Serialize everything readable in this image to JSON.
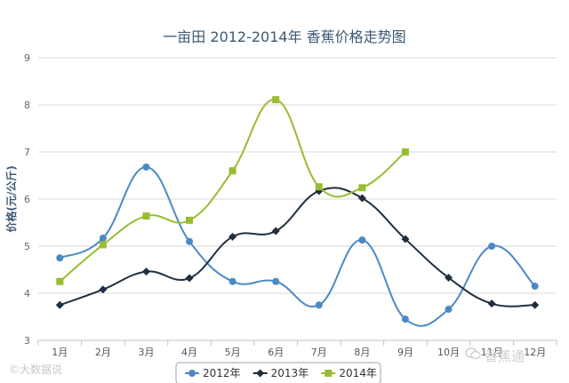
{
  "chart_data": {
    "type": "line",
    "title": "一亩田 2012-2014年 香蕉价格走势图",
    "ylabel": "价格(元/公斤)",
    "xlabel": "",
    "categories": [
      "1月",
      "2月",
      "3月",
      "4月",
      "5月",
      "6月",
      "7月",
      "8月",
      "9月",
      "10月",
      "11月",
      "12月"
    ],
    "ylim": [
      3,
      9
    ],
    "yticks": [
      3,
      4,
      5,
      6,
      7,
      8,
      9
    ],
    "grid": true,
    "legend_position": "bottom-center",
    "series": [
      {
        "name": "2012年",
        "color": "#4a89c6",
        "marker": "circle",
        "values": [
          4.75,
          5.17,
          6.68,
          5.1,
          4.25,
          4.25,
          3.75,
          5.13,
          3.45,
          3.66,
          5.0,
          4.15
        ]
      },
      {
        "name": "2013年",
        "color": "#1f2f3f",
        "marker": "diamond",
        "values": [
          3.75,
          4.08,
          4.46,
          4.32,
          5.2,
          5.32,
          6.17,
          6.02,
          5.15,
          4.33,
          3.78,
          3.75
        ]
      },
      {
        "name": "2014年",
        "color": "#98bd32",
        "marker": "square",
        "values": [
          4.25,
          5.03,
          5.64,
          5.55,
          6.6,
          8.11,
          6.26,
          6.24,
          7.0,
          null,
          null,
          null
        ]
      }
    ]
  },
  "watermarks": {
    "left": "©大数据说",
    "right": "香蕉通"
  }
}
